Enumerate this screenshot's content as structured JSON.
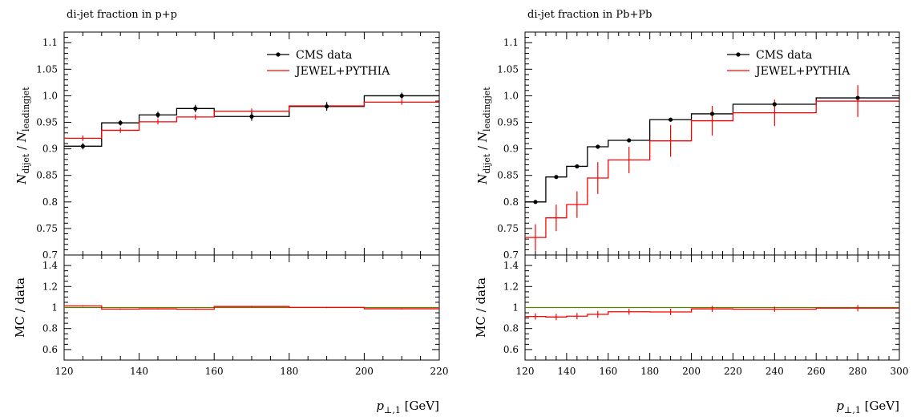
{
  "colors": {
    "data": "#000000",
    "mc": "#ff0000",
    "ref_line": "#558000"
  },
  "chart_data": [
    {
      "type": "line",
      "title": "di-jet fraction in p+p",
      "ylabel_main": "N_dijet / N_leadingjet",
      "ylabel_ratio": "MC / data",
      "xlabel": "p_⊥,1 [GeV]",
      "xlim": [
        120,
        220
      ],
      "ylim_main": [
        0.7,
        1.12
      ],
      "ylim_ratio": [
        0.5,
        1.5
      ],
      "xticks": [
        120,
        140,
        160,
        180,
        200,
        220
      ],
      "yticks_main": [
        "0.7",
        "0.75",
        "0.8",
        "0.85",
        "0.9",
        "0.95",
        "1.0",
        "1.05",
        "1.1"
      ],
      "yticks_ratio": [
        "0.6",
        "0.8",
        "1",
        "1.2",
        "1.4"
      ],
      "legend": [
        "CMS data",
        "JEWEL+PYTHIA"
      ],
      "legend_placement": "top-right",
      "bin_edges": [
        120,
        130,
        140,
        150,
        160,
        180,
        200,
        220
      ],
      "series": [
        {
          "name": "CMS data",
          "values": [
            0.905,
            0.949,
            0.964,
            0.976,
            0.961,
            0.98,
            1.0
          ],
          "errors": [
            0.006,
            0.005,
            0.006,
            0.007,
            0.008,
            0.008,
            0.006
          ]
        },
        {
          "name": "JEWEL+PYTHIA",
          "values": [
            0.92,
            0.935,
            0.951,
            0.96,
            0.971,
            0.981,
            0.988
          ],
          "errors": [
            0.005,
            0.005,
            0.005,
            0.005,
            0.005,
            0.005,
            0.005
          ]
        }
      ],
      "ratio": {
        "values": [
          1.015,
          0.985,
          0.987,
          0.984,
          1.01,
          1.001,
          0.988
        ],
        "errors": [
          0.006,
          0.006,
          0.006,
          0.006,
          0.006,
          0.006,
          0.006
        ]
      }
    },
    {
      "type": "line",
      "title": "di-jet fraction in Pb+Pb",
      "ylabel_main": "N_dijet / N_leadingjet",
      "ylabel_ratio": "MC / data",
      "xlabel": "p_⊥,1 [GeV]",
      "xlim": [
        120,
        300
      ],
      "ylim_main": [
        0.7,
        1.12
      ],
      "ylim_ratio": [
        0.5,
        1.5
      ],
      "xticks": [
        120,
        140,
        160,
        180,
        200,
        220,
        240,
        260,
        280,
        300
      ],
      "yticks_main": [
        "0.7",
        "0.75",
        "0.8",
        "0.85",
        "0.9",
        "0.95",
        "1.0",
        "1.05",
        "1.1"
      ],
      "yticks_ratio": [
        "0.6",
        "0.8",
        "1",
        "1.2",
        "1.4"
      ],
      "legend": [
        "CMS data",
        "JEWEL+PYTHIA"
      ],
      "legend_placement": "top-right",
      "bin_edges": [
        120,
        130,
        140,
        150,
        160,
        180,
        200,
        220,
        260,
        300
      ],
      "series": [
        {
          "name": "CMS data",
          "values": [
            0.8,
            0.847,
            0.867,
            0.904,
            0.916,
            0.955,
            0.966,
            0.984,
            0.996
          ],
          "errors": [
            0.003,
            0.003,
            0.003,
            0.003,
            0.003,
            0.003,
            0.003,
            0.003,
            0.003
          ]
        },
        {
          "name": "JEWEL+PYTHIA",
          "values": [
            0.733,
            0.77,
            0.795,
            0.845,
            0.879,
            0.915,
            0.953,
            0.968,
            0.99
          ],
          "errors": [
            0.025,
            0.025,
            0.025,
            0.03,
            0.025,
            0.03,
            0.028,
            0.025,
            0.03
          ]
        }
      ],
      "ratio": {
        "values": [
          0.915,
          0.91,
          0.918,
          0.935,
          0.96,
          0.958,
          0.987,
          0.984,
          0.994
        ],
        "errors": [
          0.03,
          0.03,
          0.03,
          0.033,
          0.028,
          0.03,
          0.029,
          0.025,
          0.03
        ]
      }
    }
  ]
}
